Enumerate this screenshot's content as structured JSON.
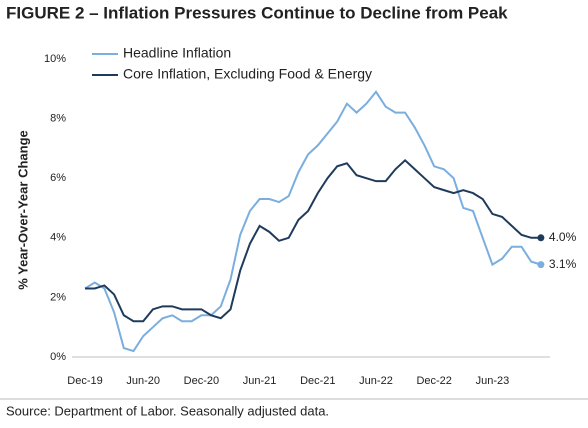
{
  "chart_data": {
    "type": "line",
    "title": "FIGURE 2 – Inflation Pressures Continue to Decline from Peak",
    "ylabel": "% Year-Over-Year Change",
    "source": "Source: Department of Labor. Seasonally adjusted data.",
    "legend": "upper left",
    "grid": false,
    "categories": [
      "Dec-19",
      null,
      null,
      null,
      null,
      null,
      "Jun-20",
      null,
      null,
      null,
      null,
      null,
      "Dec-20",
      null,
      null,
      null,
      null,
      null,
      "Jun-21",
      null,
      null,
      null,
      null,
      null,
      "Dec-21",
      null,
      null,
      null,
      null,
      null,
      "Jun-22",
      null,
      null,
      null,
      null,
      null,
      "Dec-22",
      null,
      null,
      null,
      null,
      null,
      "Jun-23",
      null,
      null,
      null,
      null,
      null
    ],
    "ylim": [
      0,
      10
    ],
    "yticks": [
      {
        "value": 0,
        "label": "0%"
      },
      {
        "value": 2,
        "label": "2%"
      },
      {
        "value": 4,
        "label": "4%"
      },
      {
        "value": 6,
        "label": "6%"
      },
      {
        "value": 8,
        "label": "8%"
      },
      {
        "value": 10,
        "label": "10%"
      }
    ],
    "series": [
      {
        "name": "Headline Inflation",
        "color": "#7aaedf",
        "values": [
          2.3,
          2.5,
          2.3,
          1.5,
          0.3,
          0.2,
          0.7,
          1.0,
          1.3,
          1.4,
          1.2,
          1.2,
          1.4,
          1.4,
          1.7,
          2.6,
          4.1,
          4.9,
          5.3,
          5.3,
          5.2,
          5.4,
          6.2,
          6.8,
          7.1,
          7.5,
          7.9,
          8.5,
          8.2,
          8.5,
          8.9,
          8.4,
          8.2,
          8.2,
          7.7,
          7.1,
          6.4,
          6.3,
          6.0,
          5.0,
          4.9,
          4.0,
          3.1,
          3.3,
          3.7,
          3.7,
          3.2,
          3.1
        ],
        "value_labels": [
          null,
          null,
          null,
          null,
          null,
          null,
          null,
          null,
          null,
          null,
          null,
          null,
          null,
          null,
          null,
          null,
          null,
          null,
          null,
          null,
          null,
          null,
          null,
          null,
          null,
          null,
          null,
          null,
          null,
          null,
          null,
          null,
          null,
          null,
          null,
          null,
          null,
          null,
          null,
          null,
          null,
          null,
          null,
          null,
          null,
          null,
          null,
          "3.1%"
        ]
      },
      {
        "name": "Core Inflation, Excluding Food & Energy",
        "color": "#1f3b5c",
        "values": [
          2.3,
          2.3,
          2.4,
          2.1,
          1.4,
          1.2,
          1.2,
          1.6,
          1.7,
          1.7,
          1.6,
          1.6,
          1.6,
          1.4,
          1.3,
          1.6,
          2.9,
          3.8,
          4.4,
          4.2,
          3.9,
          4.0,
          4.6,
          4.9,
          5.5,
          6.0,
          6.4,
          6.5,
          6.1,
          6.0,
          5.9,
          5.9,
          6.3,
          6.6,
          6.3,
          6.0,
          5.7,
          5.6,
          5.5,
          5.6,
          5.5,
          5.3,
          4.8,
          4.7,
          4.4,
          4.1,
          4.0,
          4.0
        ],
        "value_labels": [
          null,
          null,
          null,
          null,
          null,
          null,
          null,
          null,
          null,
          null,
          null,
          null,
          null,
          null,
          null,
          null,
          null,
          null,
          null,
          null,
          null,
          null,
          null,
          null,
          null,
          null,
          null,
          null,
          null,
          null,
          null,
          null,
          null,
          null,
          null,
          null,
          null,
          null,
          null,
          null,
          null,
          null,
          null,
          null,
          null,
          null,
          null,
          "4.0%"
        ]
      }
    ]
  }
}
